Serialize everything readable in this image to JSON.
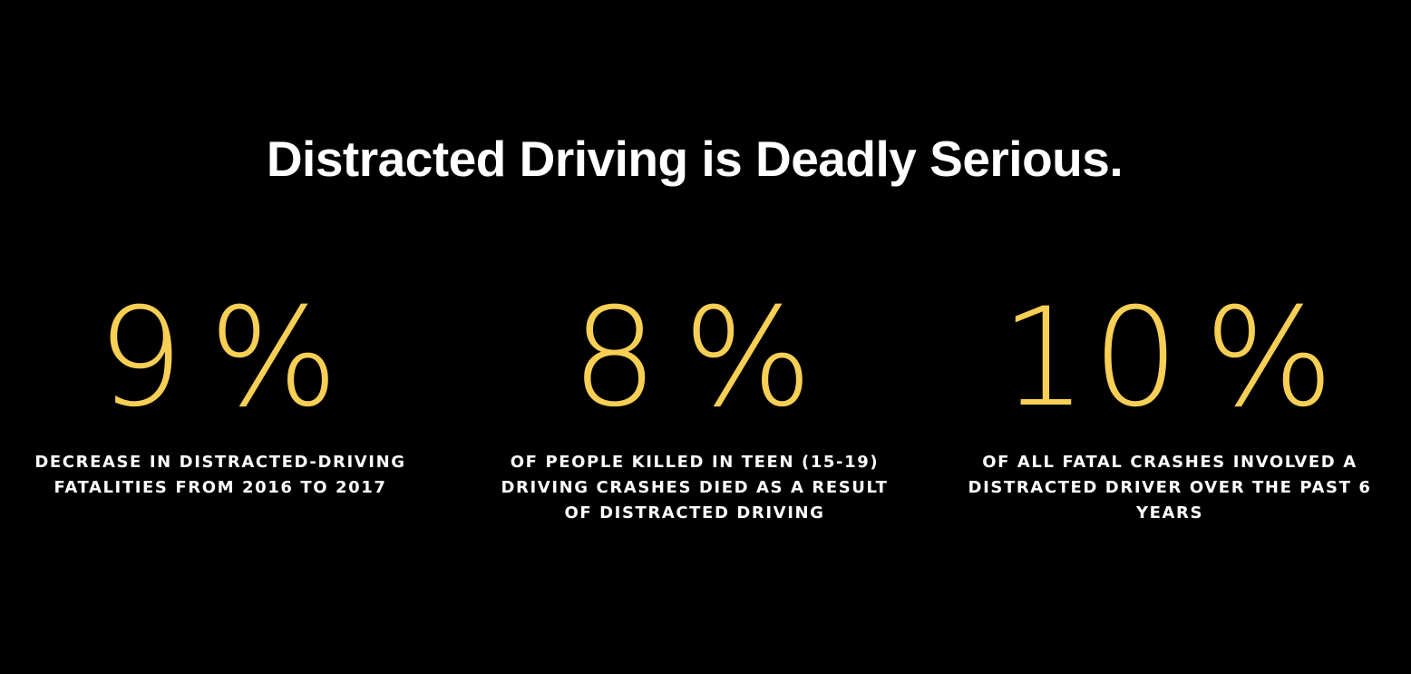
{
  "section": {
    "title": "Distracted Driving is Deadly Serious."
  },
  "stats": [
    {
      "value": "9",
      "unit": "%",
      "label": "DECREASE IN DISTRACTED-DRIVING FATALITIES FROM 2016 TO 2017"
    },
    {
      "value": "8",
      "unit": "%",
      "label": "OF PEOPLE KILLED IN TEEN (15-19) DRIVING CRASHES DIED AS A RESULT OF DISTRACTED DRIVING"
    },
    {
      "value": "10",
      "unit": "%",
      "label": "OF ALL FATAL CRASHES INVOLVED A DISTRACTED DRIVER OVER THE PAST 6 YEARS"
    }
  ],
  "colors": {
    "background": "#000000",
    "accent": "#f7cf55",
    "text": "#ffffff"
  }
}
